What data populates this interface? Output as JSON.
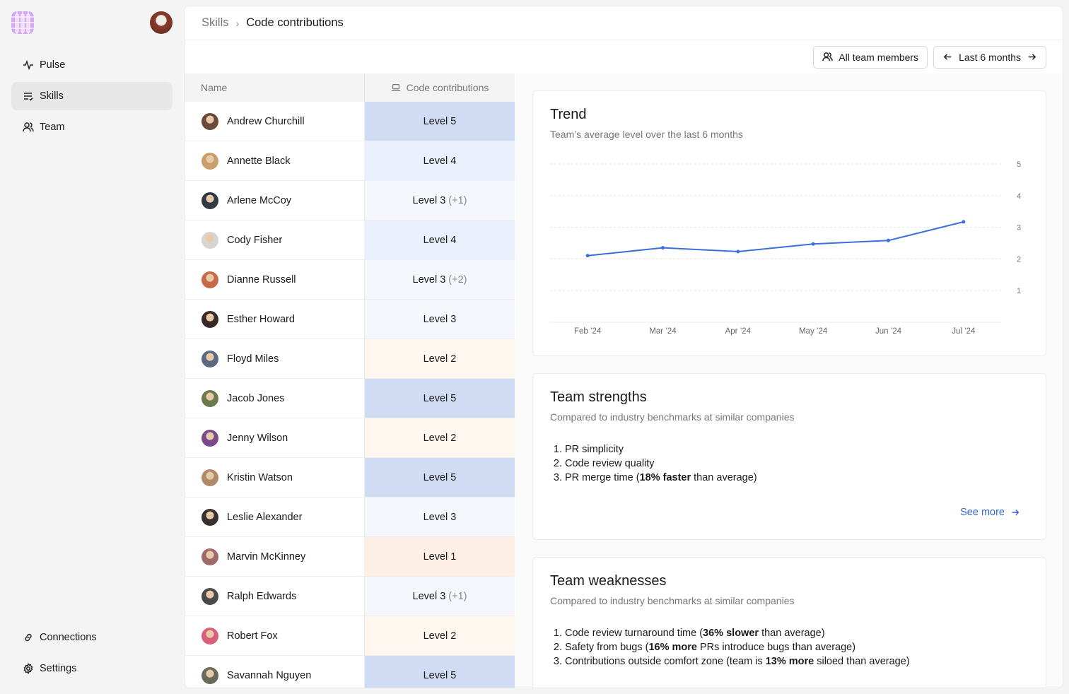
{
  "sidebar": {
    "nav": [
      {
        "label": "Pulse",
        "icon": "pulse-icon"
      },
      {
        "label": "Skills",
        "icon": "skills-icon",
        "active": true
      },
      {
        "label": "Team",
        "icon": "team-icon"
      }
    ],
    "bottom": [
      {
        "label": "Connections",
        "icon": "link-icon"
      },
      {
        "label": "Settings",
        "icon": "gear-icon"
      }
    ]
  },
  "breadcrumb": {
    "parent": "Skills",
    "current": "Code contributions"
  },
  "toolbar": {
    "members": "All team members",
    "range": "Last 6 months"
  },
  "table": {
    "col_name": "Name",
    "col_metric": "Code contributions",
    "rows": [
      {
        "name": "Andrew Churchill",
        "level": "Level 5",
        "delta": "",
        "lv": 5,
        "avatar": "#6b4a3a"
      },
      {
        "name": "Annette Black",
        "level": "Level 4",
        "delta": "",
        "lv": 4,
        "avatar": "#c9a06a"
      },
      {
        "name": "Arlene McCoy",
        "level": "Level 3",
        "delta": "(+1)",
        "lv": 3,
        "avatar": "#2f3a45"
      },
      {
        "name": "Cody Fisher",
        "level": "Level 4",
        "delta": "",
        "lv": 4,
        "avatar": "#d9d4cf"
      },
      {
        "name": "Dianne Russell",
        "level": "Level 3",
        "delta": "(+2)",
        "lv": 3,
        "avatar": "#c86a4a"
      },
      {
        "name": "Esther Howard",
        "level": "Level 3",
        "delta": "",
        "lv": 3,
        "avatar": "#3a2a25"
      },
      {
        "name": "Floyd Miles",
        "level": "Level 2",
        "delta": "",
        "lv": 2,
        "avatar": "#5a6a80"
      },
      {
        "name": "Jacob Jones",
        "level": "Level 5",
        "delta": "",
        "lv": 5,
        "avatar": "#6a7a4a"
      },
      {
        "name": "Jenny Wilson",
        "level": "Level 2",
        "delta": "",
        "lv": 2,
        "avatar": "#7a4a8a"
      },
      {
        "name": "Kristin Watson",
        "level": "Level 5",
        "delta": "",
        "lv": 5,
        "avatar": "#b08a6a"
      },
      {
        "name": "Leslie Alexander",
        "level": "Level 3",
        "delta": "",
        "lv": 3,
        "avatar": "#3a3030"
      },
      {
        "name": "Marvin McKinney",
        "level": "Level 1",
        "delta": "",
        "lv": 1,
        "avatar": "#a06a6a"
      },
      {
        "name": "Ralph Edwards",
        "level": "Level 3",
        "delta": "(+1)",
        "lv": 3,
        "avatar": "#4a4a4a"
      },
      {
        "name": "Robert Fox",
        "level": "Level 2",
        "delta": "",
        "lv": 2,
        "avatar": "#d9607a"
      },
      {
        "name": "Savannah Nguyen",
        "level": "Level 5",
        "delta": "",
        "lv": 5,
        "avatar": "#6a6a5a"
      }
    ]
  },
  "level_colors": {
    "5": "#cfdcf3",
    "4": "#e9effb",
    "3": "#f5f7fc",
    "2": "#fdf7f0",
    "1": "#fdefe4"
  },
  "trend": {
    "title": "Trend",
    "subtitle": "Team’s average level over the last 6 months"
  },
  "chart_data": {
    "type": "line",
    "categories": [
      "Feb ’24",
      "Mar ’24",
      "Apr ’24",
      "May ’24",
      "Jun ’24",
      "Jul ’24"
    ],
    "values": [
      2.1,
      2.35,
      2.23,
      2.47,
      2.58,
      3.17
    ],
    "yticks": [
      1,
      2,
      3,
      4,
      5
    ],
    "ylim": [
      0,
      5
    ],
    "color": "#3b6fd9",
    "grid": true
  },
  "strengths": {
    "title": "Team strengths",
    "subtitle": "Compared to industry benchmarks at similar companies",
    "items": [
      [
        "PR simplicity"
      ],
      [
        "Code review quality"
      ],
      [
        "PR merge time (",
        "18% faster",
        " than average)"
      ]
    ],
    "see_more": "See more"
  },
  "weaknesses": {
    "title": "Team weaknesses",
    "subtitle": "Compared to industry benchmarks at similar companies",
    "items": [
      [
        "Code review turnaround time (",
        "36% slower",
        " than average)"
      ],
      [
        "Safety from bugs (",
        "16% more",
        " PRs introduce bugs than average)"
      ],
      [
        "Contributions outside comfort zone (team is ",
        "13% more",
        " siloed than average)"
      ]
    ]
  }
}
